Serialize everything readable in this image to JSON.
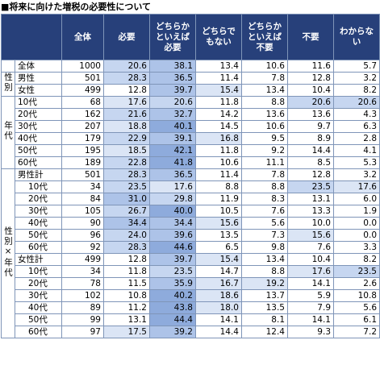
{
  "title": "■将来に向けた増税の必要性について",
  "table": {
    "columns": [
      "全体",
      "必要",
      "どちらかといえば必要",
      "どちらでもない",
      "どちらかといえば不要",
      "不要",
      "わからない"
    ],
    "total_row": {
      "label": "全体",
      "cells": [
        "1000",
        "20.6",
        "38.1",
        "13.4",
        "10.6",
        "11.6",
        "5.7"
      ]
    },
    "groups": [
      {
        "label": "性別",
        "rows": [
          {
            "label": "男性",
            "cells": [
              "501",
              "28.3",
              "36.5",
              "11.4",
              "7.8",
              "12.8",
              "3.2"
            ]
          },
          {
            "label": "女性",
            "cells": [
              "499",
              "12.8",
              "39.7",
              "15.4",
              "13.4",
              "10.4",
              "8.2"
            ]
          }
        ]
      },
      {
        "label": "年代",
        "rows": [
          {
            "label": "10代",
            "cells": [
              "68",
              "17.6",
              "20.6",
              "11.8",
              "8.8",
              "20.6",
              "20.6"
            ]
          },
          {
            "label": "20代",
            "cells": [
              "162",
              "21.6",
              "32.7",
              "14.2",
              "13.6",
              "13.6",
              "4.3"
            ]
          },
          {
            "label": "30代",
            "cells": [
              "207",
              "18.8",
              "40.1",
              "14.5",
              "10.6",
              "9.7",
              "6.3"
            ]
          },
          {
            "label": "40代",
            "cells": [
              "179",
              "22.9",
              "39.1",
              "16.8",
              "9.5",
              "8.9",
              "2.8"
            ]
          },
          {
            "label": "50代",
            "cells": [
              "195",
              "18.5",
              "42.1",
              "11.8",
              "9.2",
              "14.4",
              "4.1"
            ]
          },
          {
            "label": "60代",
            "cells": [
              "189",
              "22.8",
              "41.8",
              "10.6",
              "11.1",
              "8.5",
              "5.3"
            ]
          }
        ]
      },
      {
        "label": "性別×年代",
        "subgroups": [
          {
            "label": "男性計",
            "cells": [
              "501",
              "28.3",
              "36.5",
              "11.4",
              "7.8",
              "12.8",
              "3.2"
            ],
            "rows": [
              {
                "label": "10代",
                "cells": [
                  "34",
                  "23.5",
                  "17.6",
                  "8.8",
                  "8.8",
                  "23.5",
                  "17.6"
                ]
              },
              {
                "label": "20代",
                "cells": [
                  "84",
                  "31.0",
                  "29.8",
                  "11.9",
                  "8.3",
                  "13.1",
                  "6.0"
                ]
              },
              {
                "label": "30代",
                "cells": [
                  "105",
                  "26.7",
                  "40.0",
                  "10.5",
                  "7.6",
                  "13.3",
                  "1.9"
                ]
              },
              {
                "label": "40代",
                "cells": [
                  "90",
                  "34.4",
                  "34.4",
                  "15.6",
                  "5.6",
                  "10.0",
                  "0.0"
                ]
              },
              {
                "label": "50代",
                "cells": [
                  "96",
                  "24.0",
                  "39.6",
                  "13.5",
                  "7.3",
                  "15.6",
                  "0.0"
                ]
              },
              {
                "label": "60代",
                "cells": [
                  "92",
                  "28.3",
                  "44.6",
                  "6.5",
                  "9.8",
                  "7.6",
                  "3.3"
                ]
              }
            ]
          },
          {
            "label": "女性計",
            "cells": [
              "499",
              "12.8",
              "39.7",
              "15.4",
              "13.4",
              "10.4",
              "8.2"
            ],
            "rows": [
              {
                "label": "10代",
                "cells": [
                  "34",
                  "11.8",
                  "23.5",
                  "14.7",
                  "8.8",
                  "17.6",
                  "23.5"
                ]
              },
              {
                "label": "20代",
                "cells": [
                  "78",
                  "11.5",
                  "35.9",
                  "16.7",
                  "19.2",
                  "14.1",
                  "2.6"
                ]
              },
              {
                "label": "30代",
                "cells": [
                  "102",
                  "10.8",
                  "40.2",
                  "18.6",
                  "13.7",
                  "5.9",
                  "10.8"
                ]
              },
              {
                "label": "40代",
                "cells": [
                  "89",
                  "11.2",
                  "43.8",
                  "18.0",
                  "13.5",
                  "7.9",
                  "5.6"
                ]
              },
              {
                "label": "50代",
                "cells": [
                  "99",
                  "13.1",
                  "44.4",
                  "14.1",
                  "8.1",
                  "14.1",
                  "6.1"
                ]
              },
              {
                "label": "60代",
                "cells": [
                  "97",
                  "17.5",
                  "39.2",
                  "14.4",
                  "12.4",
                  "9.3",
                  "7.2"
                ]
              }
            ]
          }
        ]
      }
    ]
  }
}
